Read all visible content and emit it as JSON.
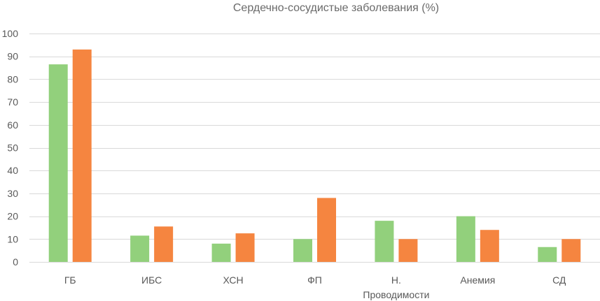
{
  "chart_data": {
    "type": "bar",
    "title": "Сердечно-сосудистые заболевания (%)",
    "xlabel": "",
    "ylabel": "",
    "ylim": [
      0,
      100
    ],
    "yticks": [
      "0",
      "10",
      "20",
      "30",
      "40",
      "50",
      "60",
      "70",
      "80",
      "90",
      "100"
    ],
    "grid": true,
    "legend": "none",
    "categories": [
      [
        "ГБ"
      ],
      [
        "ИБС"
      ],
      [
        "ХСН"
      ],
      [
        "ФП"
      ],
      [
        "Н.",
        "Проводимости"
      ],
      [
        "Анемия"
      ],
      [
        "СД"
      ]
    ],
    "series": [
      {
        "color": "#92d07c",
        "values": [
          86.5,
          11.5,
          8,
          10,
          18,
          20,
          6.5
        ]
      },
      {
        "color": "#f58540",
        "values": [
          93,
          15.5,
          12.5,
          28,
          10,
          14,
          10
        ]
      }
    ]
  }
}
